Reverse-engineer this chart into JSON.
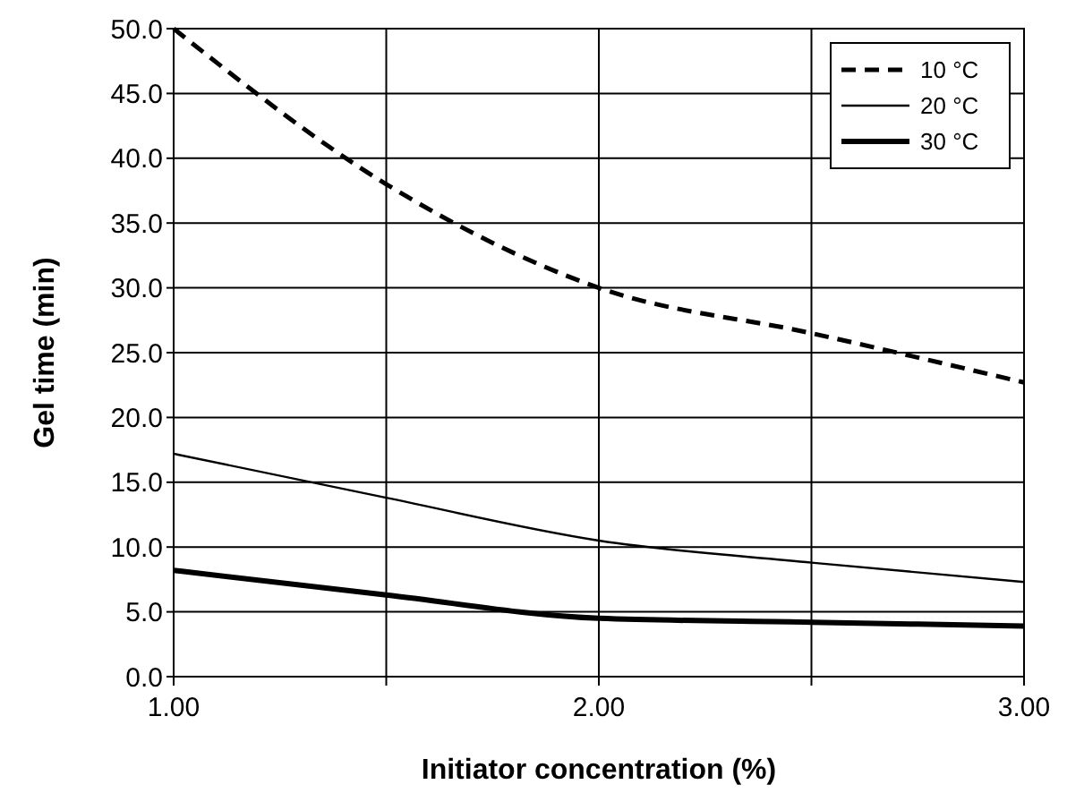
{
  "chart_data": {
    "type": "line",
    "xlabel": "Initiator concentration (%)",
    "ylabel": "Gel time (min)",
    "xlim": [
      1,
      3
    ],
    "xticks": [
      {
        "value": 1,
        "label": "1.00"
      },
      {
        "value": 1.5,
        "label": null
      },
      {
        "value": 2,
        "label": "2.00"
      },
      {
        "value": 2.5,
        "label": null
      },
      {
        "value": 3,
        "label": "3.00"
      }
    ],
    "ylim": [
      0,
      50
    ],
    "yticks": [
      {
        "value": 0,
        "label": "0.0"
      },
      {
        "value": 5,
        "label": "5.0"
      },
      {
        "value": 10,
        "label": "10.0"
      },
      {
        "value": 15,
        "label": "15.0"
      },
      {
        "value": 20,
        "label": "20.0"
      },
      {
        "value": 25,
        "label": "25.0"
      },
      {
        "value": 30,
        "label": "30.0"
      },
      {
        "value": 35,
        "label": "35.0"
      },
      {
        "value": 40,
        "label": "40.0"
      },
      {
        "value": 45,
        "label": "45.0"
      },
      {
        "value": 50,
        "label": "50.0"
      }
    ],
    "grid": true,
    "legend": "top right",
    "marker": "none",
    "x": [
      1,
      1.5,
      2,
      2.5,
      3
    ],
    "series": [
      {
        "name": "10 °C",
        "color": "#000000",
        "line_style": "dashed",
        "values": [
          50,
          38,
          30,
          26.5,
          22.7
        ]
      },
      {
        "name": "20 °C",
        "color": "#000000",
        "line_style": "solid",
        "values": [
          17.2,
          13.8,
          10.5,
          8.8,
          7.3
        ]
      },
      {
        "name": "30 °C",
        "color": "#000000",
        "line_style": "solid",
        "values": [
          8.2,
          6.3,
          4.5,
          4.2,
          3.9
        ]
      }
    ]
  }
}
